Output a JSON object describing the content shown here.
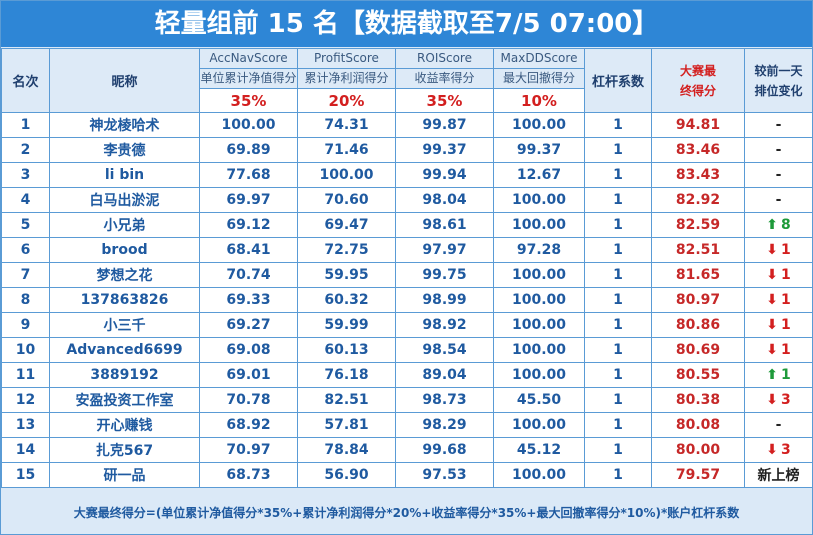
{
  "title": "轻量组前 15 名【数据截取至7/5 07:00】",
  "header": {
    "rank": "名次",
    "nickname": "昵称",
    "accnav_en": "AccNavScore",
    "accnav_cn": "单位累计净值得分",
    "accnav_weight": "35%",
    "profit_en": "ProfitScore",
    "profit_cn": "累计净利润得分",
    "profit_weight": "20%",
    "roi_en": "ROIScore",
    "roi_cn": "收益率得分",
    "roi_weight": "35%",
    "maxdd_en": "MaxDDScore",
    "maxdd_cn": "最大回撤得分",
    "maxdd_weight": "10%",
    "leverage": "杠杆系数",
    "final_line1": "大赛最",
    "final_line2": "终得分",
    "change_line1": "较前一天",
    "change_line2": "排位变化"
  },
  "rows": [
    {
      "rank": "1",
      "name": "神龙棱哈术",
      "accnav": "100.00",
      "profit": "74.31",
      "roi": "99.87",
      "maxdd": "100.00",
      "lev": "1",
      "final": "94.81",
      "arrow": "",
      "change": "-",
      "dir": "none"
    },
    {
      "rank": "2",
      "name": "李贵德",
      "accnav": "69.89",
      "profit": "71.46",
      "roi": "99.37",
      "maxdd": "99.37",
      "lev": "1",
      "final": "83.46",
      "arrow": "",
      "change": "-",
      "dir": "none"
    },
    {
      "rank": "3",
      "name": "li bin",
      "accnav": "77.68",
      "profit": "100.00",
      "roi": "99.94",
      "maxdd": "12.67",
      "lev": "1",
      "final": "83.43",
      "arrow": "",
      "change": "-",
      "dir": "none"
    },
    {
      "rank": "4",
      "name": "白马出淤泥",
      "accnav": "69.97",
      "profit": "70.60",
      "roi": "98.04",
      "maxdd": "100.00",
      "lev": "1",
      "final": "82.92",
      "arrow": "",
      "change": "-",
      "dir": "none"
    },
    {
      "rank": "5",
      "name": "小兄弟",
      "accnav": "69.12",
      "profit": "69.47",
      "roi": "98.61",
      "maxdd": "100.00",
      "lev": "1",
      "final": "82.59",
      "arrow": "⬆",
      "change": "8",
      "dir": "up"
    },
    {
      "rank": "6",
      "name": "brood",
      "accnav": "68.41",
      "profit": "72.75",
      "roi": "97.97",
      "maxdd": "97.28",
      "lev": "1",
      "final": "82.51",
      "arrow": "⬇",
      "change": "1",
      "dir": "down"
    },
    {
      "rank": "7",
      "name": "梦想之花",
      "accnav": "70.74",
      "profit": "59.95",
      "roi": "99.75",
      "maxdd": "100.00",
      "lev": "1",
      "final": "81.65",
      "arrow": "⬇",
      "change": "1",
      "dir": "down"
    },
    {
      "rank": "8",
      "name": "137863826",
      "accnav": "69.33",
      "profit": "60.32",
      "roi": "98.99",
      "maxdd": "100.00",
      "lev": "1",
      "final": "80.97",
      "arrow": "⬇",
      "change": "1",
      "dir": "down"
    },
    {
      "rank": "9",
      "name": "小三千",
      "accnav": "69.27",
      "profit": "59.99",
      "roi": "98.92",
      "maxdd": "100.00",
      "lev": "1",
      "final": "80.86",
      "arrow": "⬇",
      "change": "1",
      "dir": "down"
    },
    {
      "rank": "10",
      "name": "Advanced6699",
      "accnav": "69.08",
      "profit": "60.13",
      "roi": "98.54",
      "maxdd": "100.00",
      "lev": "1",
      "final": "80.69",
      "arrow": "⬇",
      "change": "1",
      "dir": "down"
    },
    {
      "rank": "11",
      "name": "3889192",
      "accnav": "69.01",
      "profit": "76.18",
      "roi": "89.04",
      "maxdd": "100.00",
      "lev": "1",
      "final": "80.55",
      "arrow": "⬆",
      "change": "1",
      "dir": "up"
    },
    {
      "rank": "12",
      "name": "安盈投资工作室",
      "accnav": "70.78",
      "profit": "82.51",
      "roi": "98.73",
      "maxdd": "45.50",
      "lev": "1",
      "final": "80.38",
      "arrow": "⬇",
      "change": "3",
      "dir": "down"
    },
    {
      "rank": "13",
      "name": "开心赚钱",
      "accnav": "68.92",
      "profit": "57.81",
      "roi": "98.29",
      "maxdd": "100.00",
      "lev": "1",
      "final": "80.08",
      "arrow": "",
      "change": "-",
      "dir": "none"
    },
    {
      "rank": "14",
      "name": "扎克567",
      "accnav": "70.97",
      "profit": "78.84",
      "roi": "99.68",
      "maxdd": "45.12",
      "lev": "1",
      "final": "80.00",
      "arrow": "⬇",
      "change": "3",
      "dir": "down"
    },
    {
      "rank": "15",
      "name": "研一品",
      "accnav": "68.73",
      "profit": "56.90",
      "roi": "97.53",
      "maxdd": "100.00",
      "lev": "1",
      "final": "79.57",
      "arrow": "",
      "change": "新上榜",
      "dir": "none"
    }
  ],
  "footer": "大赛最终得分=(单位累计净值得分*35%+累计净利润得分*20%+收益率得分*35%+最大回撤率得分*10%)*账户杠杆系数",
  "colors": {
    "title_bg": "#2e86d6",
    "grid": "#5a9bd5",
    "final_red": "#c62828",
    "up_green": "#1e9a3a",
    "down_red": "#d31f1f"
  }
}
